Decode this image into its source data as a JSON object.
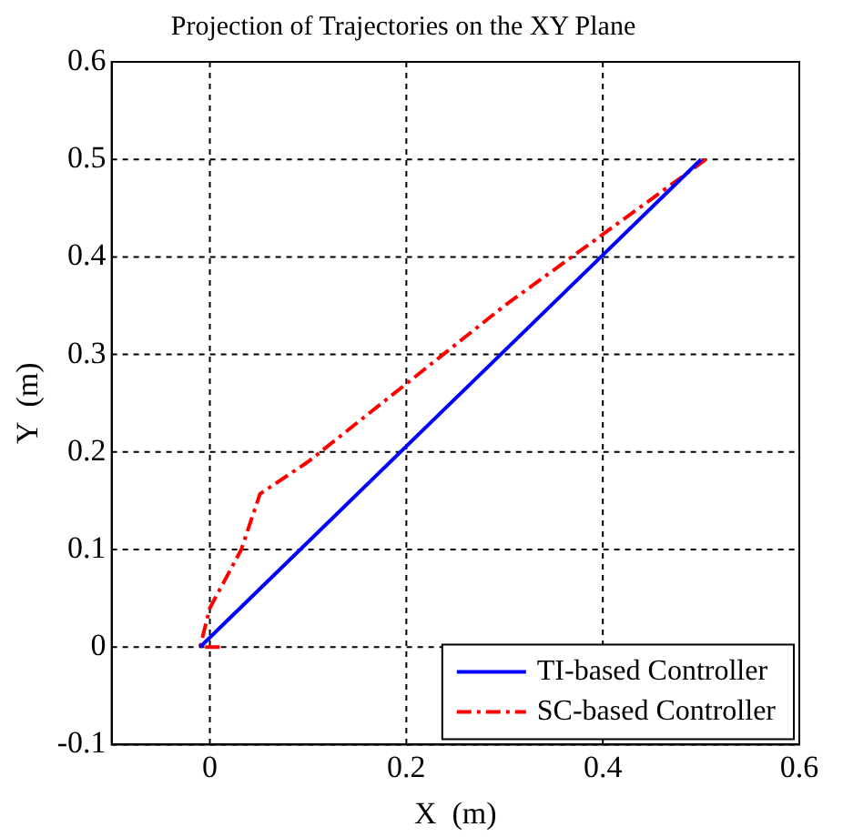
{
  "chart_data": {
    "type": "line",
    "title": "Projection of Trajectories on the XY Plane",
    "xlabel": "X  (m)",
    "ylabel": "Y  (m)",
    "xlim": [
      -0.1,
      0.6
    ],
    "xticks": [
      0,
      0.2,
      0.4,
      0.6
    ],
    "ylim": [
      -0.1,
      0.6
    ],
    "yticks": [
      -0.1,
      0,
      0.1,
      0.2,
      0.3,
      0.4,
      0.5,
      0.6
    ],
    "grid": true,
    "legend": "bottom right",
    "marker": "none",
    "series": [
      {
        "name": "TI-based Controller",
        "color": "#0000ff",
        "line_style": "solid",
        "x": [
          -0.01,
          0.5
        ],
        "values": [
          0,
          0.5
        ]
      },
      {
        "name": "SC-based Controller",
        "color": "#ff0000",
        "line_style": "dashed",
        "x": [
          0.01,
          -0.01,
          0.0,
          0.032,
          0.051,
          0.1,
          0.3,
          0.505
        ],
        "values": [
          0,
          0,
          0.04,
          0.1,
          0.157,
          0.19,
          0.35,
          0.5
        ]
      }
    ]
  }
}
